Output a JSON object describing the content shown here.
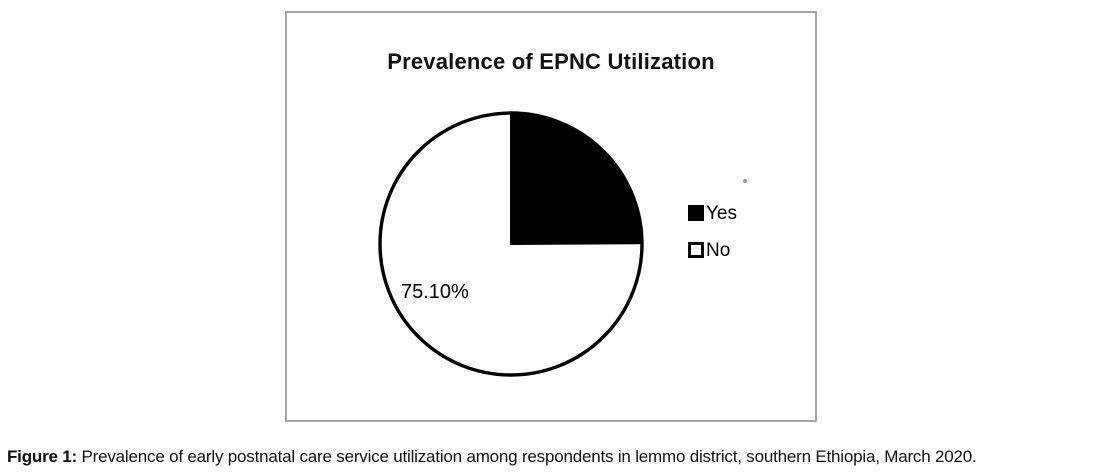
{
  "chart_data": {
    "type": "pie",
    "title": "Prevalence of EPNC Utilization",
    "slices": [
      {
        "label": "Yes",
        "value": 24.9,
        "color": "#000000"
      },
      {
        "label": "No",
        "value": 75.1,
        "color": "#ffffff"
      }
    ],
    "data_label": "75.10%",
    "data_label_for": "No",
    "start_angle_deg": 0,
    "direction": "clockwise",
    "legend_position": "right",
    "outline_color": "#000000"
  },
  "caption": {
    "prefix": "Figure 1:",
    "text": " Prevalence of early postnatal care service utilization among respondents in lemmo district, southern Ethiopia, March 2020."
  }
}
